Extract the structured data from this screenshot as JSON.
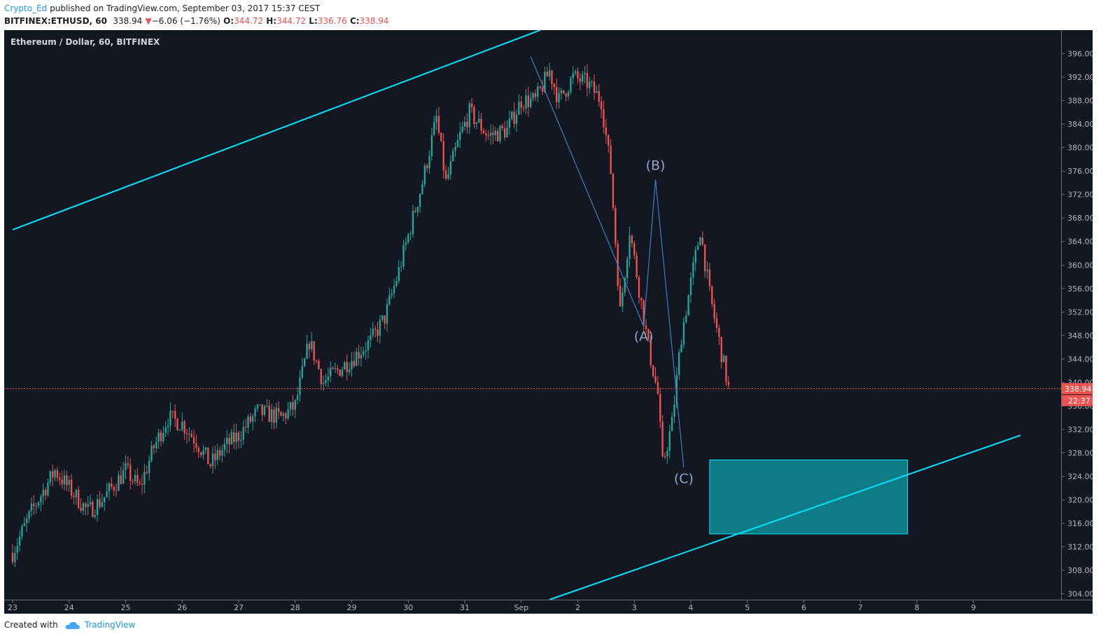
{
  "header": {
    "author": "Crypto_Ed",
    "published": "published on TradingView.com, September 03, 2017 15:37 CEST",
    "symbol": "BITFINEX:ETHUSD, 60",
    "last": "338.94",
    "change_arrow": "▼",
    "change": "−6.06 (−1.76%)",
    "o_label": "O:",
    "o_value": "344.72",
    "h_label": "H:",
    "h_value": "344.72",
    "l_label": "L:",
    "l_value": "336.76",
    "c_label": "C:",
    "c_value": "338.94"
  },
  "footer": {
    "created_with": "Created with",
    "brand": "TradingView",
    "logo_icon": "tradingview-cloud-icon"
  },
  "colors": {
    "background": "#131722",
    "up": "#26a69a",
    "down": "#ef5350",
    "channel": "#00e5ff",
    "zone_fill": "#0e7c86",
    "wave": "#3f7fc4",
    "price_line": "#ef5350"
  },
  "chart_data": {
    "type": "candlestick",
    "title": "Ethereum / Dollar, 60, BITFINEX",
    "x_ticks": [
      "23",
      "24",
      "25",
      "26",
      "27",
      "28",
      "29",
      "30",
      "31",
      "Sep",
      "2",
      "3",
      "4",
      "5",
      "6",
      "7",
      "8",
      "9"
    ],
    "y_ticks": [
      "396.00",
      "392.00",
      "388.00",
      "384.00",
      "380.00",
      "376.00",
      "372.00",
      "368.00",
      "364.00",
      "360.00",
      "356.00",
      "352.00",
      "348.00",
      "344.00",
      "340.00",
      "336.00",
      "332.00",
      "328.00",
      "324.00",
      "320.00",
      "316.00",
      "312.00",
      "308.00",
      "304.00"
    ],
    "ylim": [
      303,
      400
    ],
    "last_price_label": "338.94",
    "countdown_label": "22:37",
    "close_path": [
      [
        "2017-08-23T00",
        311
      ],
      [
        "2017-08-23T08",
        318
      ],
      [
        "2017-08-23T18",
        325
      ],
      [
        "2017-08-24T00",
        322
      ],
      [
        "2017-08-24T08",
        318
      ],
      [
        "2017-08-24T14",
        320
      ],
      [
        "2017-08-25T00",
        325
      ],
      [
        "2017-08-25T06",
        322
      ],
      [
        "2017-08-25T12",
        329
      ],
      [
        "2017-08-25T18",
        334
      ],
      [
        "2017-08-26T00",
        333
      ],
      [
        "2017-08-26T06",
        330
      ],
      [
        "2017-08-26T12",
        326
      ],
      [
        "2017-08-26T18",
        329
      ],
      [
        "2017-08-27T00",
        331
      ],
      [
        "2017-08-27T08",
        335
      ],
      [
        "2017-08-27T18",
        334
      ],
      [
        "2017-08-28T00",
        336
      ],
      [
        "2017-08-28T06",
        347
      ],
      [
        "2017-08-28T12",
        340
      ],
      [
        "2017-08-28T18",
        342
      ],
      [
        "2017-08-29T00",
        344
      ],
      [
        "2017-08-29T08",
        347
      ],
      [
        "2017-08-29T14",
        351
      ],
      [
        "2017-08-29T20",
        359
      ],
      [
        "2017-08-30T00",
        365
      ],
      [
        "2017-08-30T06",
        374
      ],
      [
        "2017-08-30T12",
        385
      ],
      [
        "2017-08-30T16",
        374
      ],
      [
        "2017-08-30T22",
        382
      ],
      [
        "2017-08-31T02",
        386
      ],
      [
        "2017-08-31T10",
        382
      ],
      [
        "2017-08-31T18",
        383
      ],
      [
        "2017-09-01T00",
        388
      ],
      [
        "2017-09-01T06",
        388
      ],
      [
        "2017-09-01T12",
        393
      ],
      [
        "2017-09-01T16",
        388
      ],
      [
        "2017-09-01T22",
        392
      ],
      [
        "2017-09-02T04",
        391
      ],
      [
        "2017-09-02T10",
        388
      ],
      [
        "2017-09-02T14",
        376
      ],
      [
        "2017-09-02T18",
        352
      ],
      [
        "2017-09-02T22",
        366
      ],
      [
        "2017-09-03T02",
        356
      ],
      [
        "2017-09-03T06",
        346
      ],
      [
        "2017-09-03T10",
        338
      ],
      [
        "2017-09-03T12",
        326
      ],
      [
        "2017-09-03T16",
        333
      ],
      [
        "2017-09-03T20",
        348
      ],
      [
        "2017-09-04T00",
        357
      ],
      [
        "2017-09-04T04",
        366
      ],
      [
        "2017-09-04T08",
        355
      ],
      [
        "2017-09-04T12",
        347
      ],
      [
        "2017-09-04T16",
        339
      ]
    ],
    "channel_lines": [
      {
        "from": [
          "2017-08-23T00",
          366
        ],
        "to": [
          "2017-09-01T08",
          400
        ]
      },
      {
        "from": [
          "2017-09-01T12",
          303
        ],
        "to": [
          "2017-09-09T20",
          331
        ]
      }
    ],
    "target_zone": {
      "x_from": "2017-09-04T08",
      "x_to": "2017-09-07T20",
      "y_from": 326.8,
      "y_to": 314.2
    },
    "wave_points": [
      {
        "x": "2017-09-01T04",
        "y": 395.5,
        "label": ""
      },
      {
        "x": "2017-09-03T04",
        "y": 349.5,
        "label": "(A)"
      },
      {
        "x": "2017-09-03T09",
        "y": 374.5,
        "label": "(B)"
      },
      {
        "x": "2017-09-03T21",
        "y": 325.5,
        "label": "(C)"
      }
    ]
  }
}
